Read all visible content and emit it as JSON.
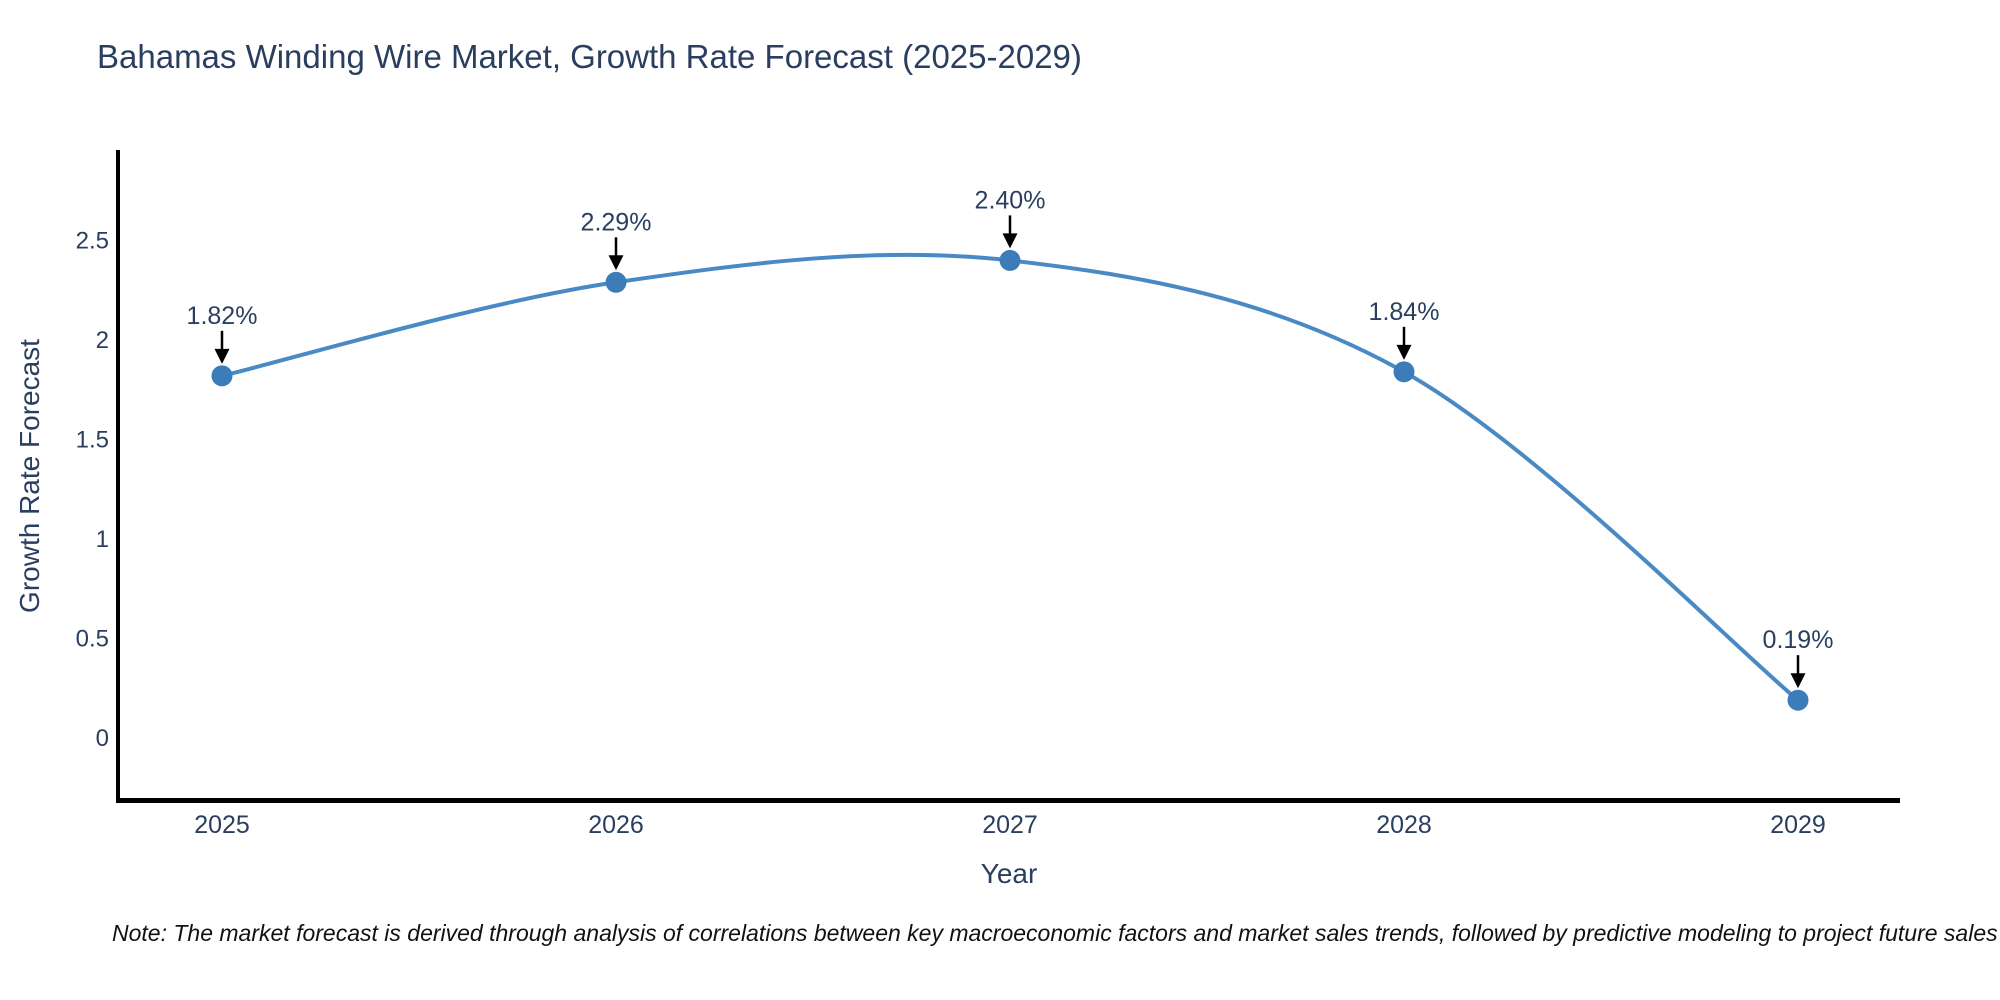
{
  "title": "Bahamas Winding Wire Market, Growth Rate Forecast (2025-2029)",
  "note": "Note: The market forecast is derived through analysis of correlations between key macroeconomic factors and market sales trends, followed by predictive modeling to project future sales",
  "chart_data": {
    "type": "line",
    "line_shape": "spline",
    "title": "Bahamas Winding Wire Market, Growth Rate Forecast (2025-2029)",
    "xlabel": "Year",
    "ylabel": "Growth Rate Forecast",
    "x": [
      2025,
      2026,
      2027,
      2028,
      2029
    ],
    "x_tick_labels": [
      "2025",
      "2026",
      "2027",
      "2028",
      "2029"
    ],
    "series": [
      {
        "name": "Growth Rate Forecast",
        "values": [
          1.82,
          2.29,
          2.4,
          1.84,
          0.19
        ]
      }
    ],
    "point_labels": [
      "1.82%",
      "2.29%",
      "2.40%",
      "1.84%",
      "0.19%"
    ],
    "yticks": [
      0,
      0.5,
      1,
      1.5,
      2,
      2.5
    ],
    "ytick_labels": [
      "0",
      "0.5",
      "1",
      "1.5",
      "2",
      "2.5"
    ],
    "ylim": [
      -0.33,
      2.96
    ],
    "grid": false,
    "legend": false,
    "annotation_arrows": true
  },
  "colors": {
    "line": "#4a8ac4",
    "marker": "#3c7db9",
    "axis_spine": "#000000",
    "title_text": "#2a3f5f",
    "tick_text": "#2a3f5f",
    "annotation_text": "#2a3f5f",
    "arrow": "#000000",
    "note_text": "#111111",
    "background": "#ffffff"
  }
}
